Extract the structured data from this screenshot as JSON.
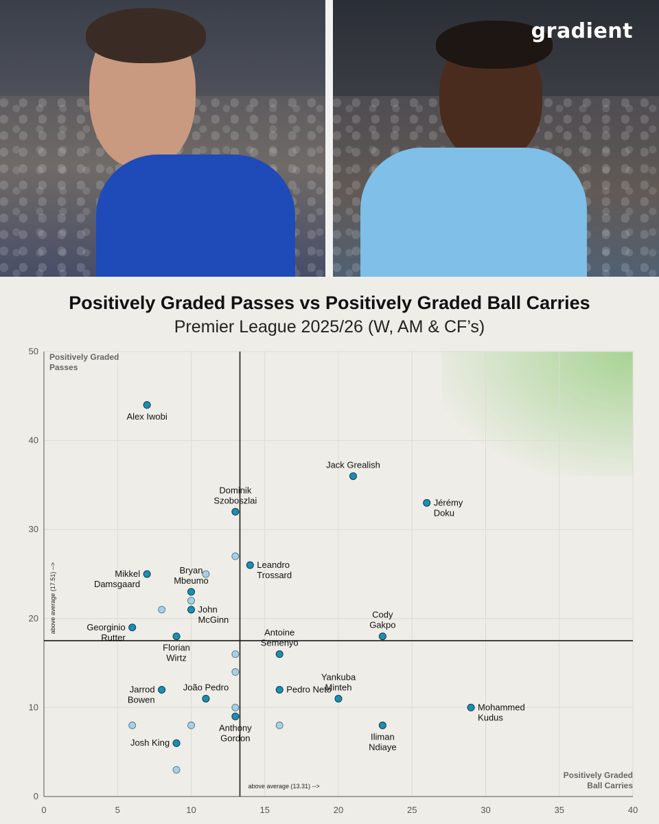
{
  "brand": "gradient",
  "colors": {
    "background": "#eeede7",
    "point": "#1b8fb3",
    "point_faded": "#a9cfe0",
    "highlight": "#9fd08a"
  },
  "chart_data": {
    "type": "scatter",
    "title": "Positively Graded Passes vs Positively Graded Ball Carries",
    "subtitle": "Premier League 2025/26 (W, AM & CF’s)",
    "xlabel": "Positively Graded\nBall Carries",
    "ylabel": "Positively Graded\nPasses",
    "xlim": [
      0,
      40
    ],
    "ylim": [
      0,
      50
    ],
    "xticks": [
      0,
      5,
      10,
      15,
      20,
      25,
      30,
      35,
      40
    ],
    "yticks": [
      0,
      10,
      20,
      30,
      40,
      50
    ],
    "grid": true,
    "avg_x": {
      "value": 13.31,
      "label": "above average (13.31) -->"
    },
    "avg_y": {
      "value": 17.51,
      "label": "above average (17.51) -->"
    },
    "highlight_region": {
      "x": [
        27,
        40
      ],
      "y": [
        36,
        50
      ]
    },
    "points": [
      {
        "name": "Alex Iwobi",
        "x": 7,
        "y": 44
      },
      {
        "name": "Jack Grealish",
        "x": 21,
        "y": 36
      },
      {
        "name": "Dominik\nSzoboszlai",
        "x": 13,
        "y": 32
      },
      {
        "name": "Jérémy\nDoku",
        "x": 26,
        "y": 33
      },
      {
        "name": "Leandro\nTrossard",
        "x": 14,
        "y": 26
      },
      {
        "name": "Mikkel\nDamsgaard",
        "x": 7,
        "y": 25
      },
      {
        "name": "Bryan\nMbeumo",
        "x": 10,
        "y": 23
      },
      {
        "name": "John\nMcGinn",
        "x": 10,
        "y": 21
      },
      {
        "name": "Georginio\nRutter",
        "x": 6,
        "y": 19
      },
      {
        "name": "Florian\nWirtz",
        "x": 9,
        "y": 18
      },
      {
        "name": "Cody\nGakpo",
        "x": 23,
        "y": 18
      },
      {
        "name": "Antoine\nSemenyo",
        "x": 16,
        "y": 16
      },
      {
        "name": "Jarrod\nBowen",
        "x": 8,
        "y": 12
      },
      {
        "name": "João Pedro",
        "x": 11,
        "y": 11
      },
      {
        "name": "Pedro Neto",
        "x": 16,
        "y": 12
      },
      {
        "name": "Yankuba\nMinteh",
        "x": 20,
        "y": 11
      },
      {
        "name": "Mohammed\nKudus",
        "x": 29,
        "y": 10
      },
      {
        "name": "Anthony\nGordon",
        "x": 13,
        "y": 9
      },
      {
        "name": "Iliman\nNdiaye",
        "x": 23,
        "y": 8
      },
      {
        "name": "Josh King",
        "x": 9,
        "y": 6
      }
    ],
    "faded_points": [
      {
        "x": 13,
        "y": 27
      },
      {
        "x": 11,
        "y": 25
      },
      {
        "x": 10,
        "y": 22
      },
      {
        "x": 8,
        "y": 21
      },
      {
        "x": 13,
        "y": 16
      },
      {
        "x": 13,
        "y": 14
      },
      {
        "x": 13,
        "y": 10
      },
      {
        "x": 6,
        "y": 8
      },
      {
        "x": 10,
        "y": 8
      },
      {
        "x": 16,
        "y": 8
      },
      {
        "x": 9,
        "y": 3
      }
    ]
  }
}
